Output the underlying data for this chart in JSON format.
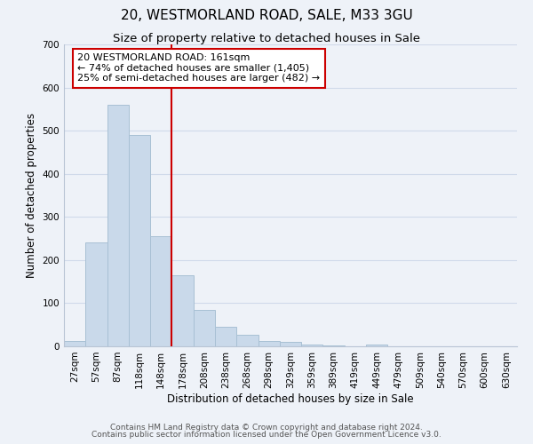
{
  "title": "20, WESTMORLAND ROAD, SALE, M33 3GU",
  "subtitle": "Size of property relative to detached houses in Sale",
  "xlabel": "Distribution of detached houses by size in Sale",
  "ylabel": "Number of detached properties",
  "bar_labels": [
    "27sqm",
    "57sqm",
    "87sqm",
    "118sqm",
    "148sqm",
    "178sqm",
    "208sqm",
    "238sqm",
    "268sqm",
    "298sqm",
    "329sqm",
    "359sqm",
    "389sqm",
    "419sqm",
    "449sqm",
    "479sqm",
    "509sqm",
    "540sqm",
    "570sqm",
    "600sqm",
    "630sqm"
  ],
  "bar_values": [
    12,
    240,
    560,
    490,
    255,
    165,
    85,
    46,
    27,
    13,
    10,
    5,
    2,
    0,
    4,
    0,
    0,
    0,
    0,
    0,
    0
  ],
  "bar_color": "#c9d9ea",
  "bar_edgecolor": "#a8c0d4",
  "vline_x": 4.5,
  "vline_color": "#cc0000",
  "annotation_text": "20 WESTMORLAND ROAD: 161sqm\n← 74% of detached houses are smaller (1,405)\n25% of semi-detached houses are larger (482) →",
  "annotation_box_facecolor": "#ffffff",
  "annotation_box_edgecolor": "#cc0000",
  "ylim": [
    0,
    700
  ],
  "yticks": [
    0,
    100,
    200,
    300,
    400,
    500,
    600,
    700
  ],
  "grid_color": "#d0daea",
  "footer_line1": "Contains HM Land Registry data © Crown copyright and database right 2024.",
  "footer_line2": "Contains public sector information licensed under the Open Government Licence v3.0.",
  "title_fontsize": 11,
  "subtitle_fontsize": 9.5,
  "tick_fontsize": 7.5,
  "ylabel_fontsize": 8.5,
  "xlabel_fontsize": 8.5,
  "annotation_fontsize": 8,
  "footer_fontsize": 6.5,
  "bg_color": "#eef2f8"
}
